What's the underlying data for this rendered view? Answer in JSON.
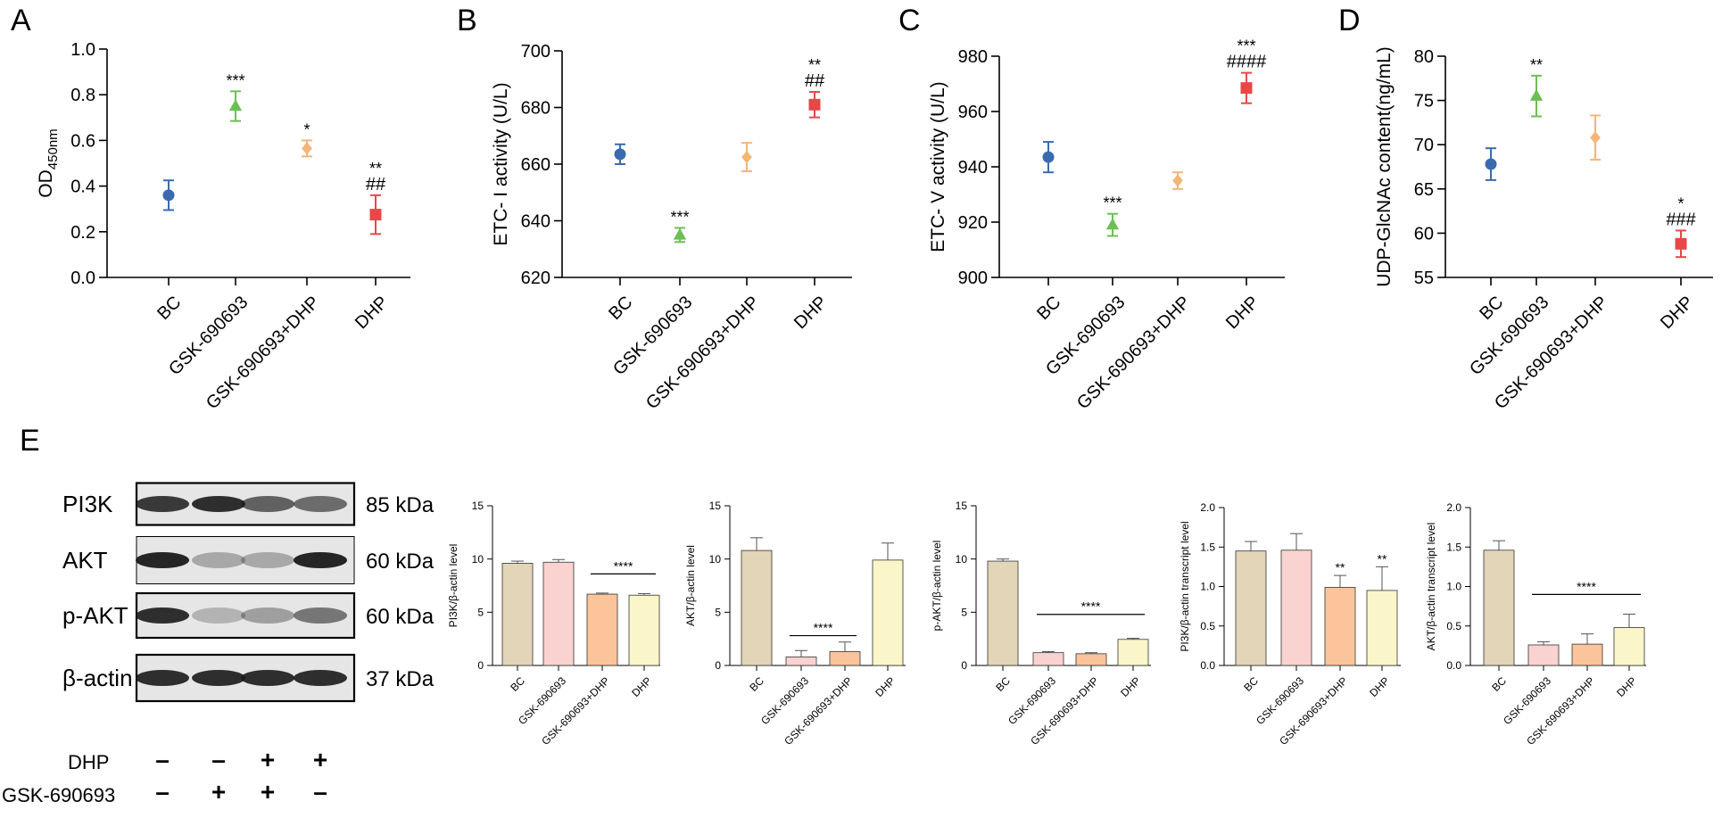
{
  "colors": {
    "axis": "#000000",
    "dot_bc": "#3a6bb0",
    "dot_gsk": "#6dbf55",
    "dot_gskdhp": "#f4b676",
    "dot_dhp": "#e84747",
    "bar_bc": "#e2d5b8",
    "bar_gsk": "#fad2d0",
    "bar_gskdhp": "#fbc49a",
    "bar_dhp": "#fbf6c9",
    "blot_bg": "#e6e6e6",
    "blot_band": "#1a1a1a"
  },
  "panel_letters": [
    "A",
    "B",
    "C",
    "D",
    "E"
  ],
  "chart_data": [
    {
      "id": "A",
      "type": "scatter",
      "ylabel": "OD",
      "ylabel_sub": "450nm",
      "ylim": [
        0.0,
        1.0
      ],
      "yticks": [
        "0.0",
        "0.2",
        "0.4",
        "0.6",
        "0.8",
        "1.0"
      ],
      "categories": [
        "BC",
        "GSK-690693",
        "GSK-690693+DHP",
        "DHP"
      ],
      "markers": [
        "circle",
        "triangle",
        "diamond",
        "square"
      ],
      "values": [
        0.36,
        0.75,
        0.565,
        0.275
      ],
      "errors": [
        0.065,
        0.065,
        0.035,
        0.085
      ],
      "annotations": [
        [],
        [
          "***"
        ],
        [
          "*"
        ],
        [
          "**",
          "##"
        ]
      ]
    },
    {
      "id": "B",
      "type": "scatter",
      "ylabel": "ETC- I activity (U/L)",
      "ylim": [
        620,
        700
      ],
      "yticks": [
        "620",
        "640",
        "660",
        "680",
        "700"
      ],
      "categories": [
        "BC",
        "GSK-690693",
        "GSK-690693+DHP",
        "DHP"
      ],
      "markers": [
        "circle",
        "triangle",
        "diamond",
        "square"
      ],
      "values": [
        663.5,
        635,
        662.5,
        681
      ],
      "errors": [
        3.5,
        2.5,
        5.0,
        4.5
      ],
      "annotations": [
        [],
        [
          "***"
        ],
        [],
        [
          "**",
          "##"
        ]
      ]
    },
    {
      "id": "C",
      "type": "scatter",
      "ylabel": "ETC- V activity (U/L)",
      "ylim": [
        900,
        980
      ],
      "yticks": [
        "900",
        "920",
        "940",
        "960",
        "980"
      ],
      "categories": [
        "BC",
        "GSK-690693",
        "GSK-690693+DHP",
        "DHP"
      ],
      "markers": [
        "circle",
        "triangle",
        "diamond",
        "square"
      ],
      "values": [
        943.5,
        919,
        935,
        968.5
      ],
      "errors": [
        5.5,
        4.0,
        3.0,
        5.5
      ],
      "annotations": [
        [],
        [
          "***"
        ],
        [],
        [
          "***",
          "####"
        ]
      ]
    },
    {
      "id": "D",
      "type": "scatter",
      "ylabel": "UDP-GlcNAc content(ng/mL)",
      "ylim": [
        55,
        80
      ],
      "yticks": [
        "55",
        "60",
        "65",
        "70",
        "75",
        "80"
      ],
      "categories": [
        "BC",
        "GSK-690693",
        "GSK-690693+DHP",
        "DHP"
      ],
      "markers": [
        "circle",
        "triangle",
        "diamond",
        "square"
      ],
      "values": [
        67.8,
        75.5,
        70.8,
        58.8
      ],
      "errors": [
        1.8,
        2.3,
        2.5,
        1.5
      ],
      "annotations": [
        [],
        [
          "**"
        ],
        [],
        [
          "*",
          "###"
        ]
      ]
    },
    {
      "id": "E1",
      "type": "bar",
      "ylabel": "PI3K/β-actin level",
      "ylim": [
        0,
        15
      ],
      "yticks": [
        "0",
        "5",
        "10",
        "15"
      ],
      "categories": [
        "BC",
        "GSK-690693",
        "GSK-690693+DHP",
        "DHP"
      ],
      "values": [
        9.6,
        9.7,
        6.7,
        6.6
      ],
      "errors": [
        0.2,
        0.25,
        0.1,
        0.15
      ],
      "bar_annotations": [
        "",
        "",
        "",
        ""
      ],
      "bracket": {
        "from": 2,
        "to": 3,
        "value": 8.6,
        "label": "****"
      }
    },
    {
      "id": "E2",
      "type": "bar",
      "ylabel": "AKT/β-actin level",
      "ylim": [
        0,
        15
      ],
      "yticks": [
        "0",
        "5",
        "10",
        "15"
      ],
      "categories": [
        "BC",
        "GSK-690693",
        "GSK-690693+DHP",
        "DHP"
      ],
      "values": [
        10.8,
        0.8,
        1.3,
        9.9
      ],
      "errors": [
        1.2,
        0.6,
        0.9,
        1.6
      ],
      "bar_annotations": [
        "",
        "",
        "",
        ""
      ],
      "bracket": {
        "from": 1,
        "to": 2,
        "value": 2.8,
        "label": "****"
      }
    },
    {
      "id": "E3",
      "type": "bar",
      "ylabel": "p-AKT/β-actin level",
      "ylim": [
        0,
        15
      ],
      "yticks": [
        "0",
        "5",
        "10",
        "15"
      ],
      "categories": [
        "BC",
        "GSK-690693",
        "GSK-690693+DHP",
        "DHP"
      ],
      "values": [
        9.8,
        1.2,
        1.1,
        2.45
      ],
      "errors": [
        0.2,
        0.1,
        0.1,
        0.1
      ],
      "bar_annotations": [
        "",
        "",
        "",
        ""
      ],
      "bracket": {
        "from": 1,
        "to": 3,
        "value": 4.8,
        "label": "****"
      }
    },
    {
      "id": "E4",
      "type": "bar",
      "ylabel": "PI3K/β-actin transcript level",
      "ylim": [
        0.0,
        2.0
      ],
      "yticks": [
        "0.0",
        "0.5",
        "1.0",
        "1.5",
        "2.0"
      ],
      "categories": [
        "BC",
        "GSK-690693",
        "GSK-690693+DHP",
        "DHP"
      ],
      "values": [
        1.45,
        1.46,
        0.99,
        0.95
      ],
      "errors": [
        0.12,
        0.21,
        0.15,
        0.3
      ],
      "bar_annotations": [
        "",
        "",
        "**",
        "**"
      ],
      "bracket": null
    },
    {
      "id": "E5",
      "type": "bar",
      "ylabel": "AKT/β-actin transcript level",
      "ylim": [
        0.0,
        2.0
      ],
      "yticks": [
        "0.0",
        "0.5",
        "1.0",
        "1.5",
        "2.0"
      ],
      "categories": [
        "BC",
        "GSK-690693",
        "GSK-690693+DHP",
        "DHP"
      ],
      "values": [
        1.46,
        0.26,
        0.27,
        0.48
      ],
      "errors": [
        0.12,
        0.04,
        0.13,
        0.17
      ],
      "bar_annotations": [
        "",
        "",
        "",
        ""
      ],
      "bracket": {
        "from": 1,
        "to": 3,
        "value": 0.9,
        "label": "****"
      }
    }
  ],
  "blot": {
    "rows": [
      {
        "name": "PI3K",
        "kda": "85 kDa",
        "intensity": [
          0.85,
          0.9,
          0.65,
          0.6
        ]
      },
      {
        "name": "AKT",
        "kda": "60 kDa",
        "intensity": [
          0.95,
          0.3,
          0.3,
          0.95
        ]
      },
      {
        "name": "p-AKT",
        "kda": "60 kDa",
        "intensity": [
          0.9,
          0.25,
          0.35,
          0.55
        ]
      },
      {
        "name": "β-actin",
        "kda": "37 kDa",
        "intensity": [
          0.9,
          0.9,
          0.9,
          0.9
        ]
      }
    ],
    "treatments": [
      {
        "name": "DHP",
        "signs": [
          "–",
          "–",
          "+",
          "+"
        ]
      },
      {
        "name": "GSK-690693",
        "signs": [
          "–",
          "+",
          "+",
          "–"
        ]
      }
    ]
  }
}
